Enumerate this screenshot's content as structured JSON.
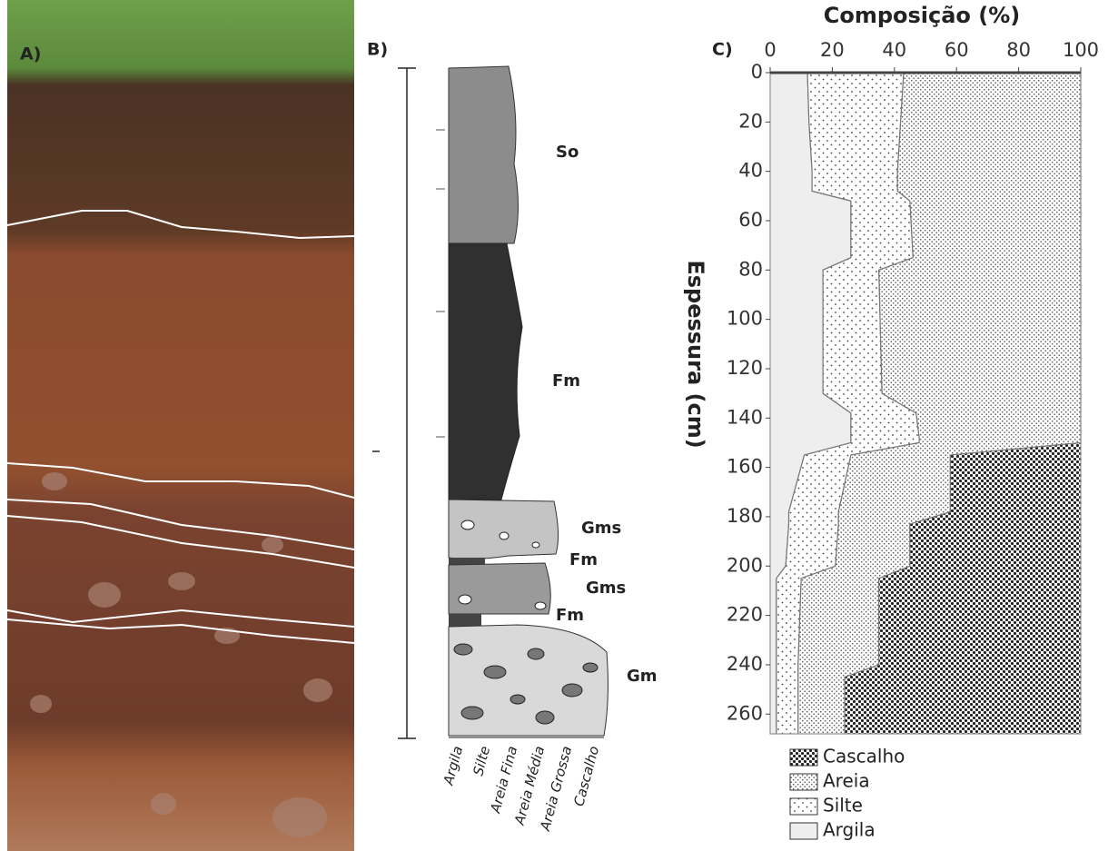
{
  "panel_a": {
    "label": "A)"
  },
  "panel_b": {
    "label": "B)",
    "units": [
      "So",
      "Fm",
      "Gms",
      "Fm",
      "Gms",
      "Fm",
      "Gm"
    ],
    "grain_sizes": [
      "Argila",
      "Silte",
      "Areia Fina",
      "Areia Média",
      "Areia Grossa",
      "Cascalho"
    ]
  },
  "chart_data": {
    "type": "area",
    "stacked": true,
    "orientation": "horizontal",
    "title": "Composição (%)",
    "panel_label": "C)",
    "y_label": "Espessura (cm)",
    "x": [
      0,
      20,
      40,
      48,
      52,
      75,
      80,
      130,
      138,
      148,
      150,
      155,
      178,
      183,
      200,
      205,
      240,
      245,
      268
    ],
    "xlim": [
      0,
      268
    ],
    "xticks": [
      0,
      20,
      40,
      60,
      80,
      100,
      120,
      140,
      160,
      180,
      200,
      220,
      240,
      260
    ],
    "ylim": [
      0,
      100
    ],
    "yticks": [
      0,
      20,
      40,
      60,
      80,
      100
    ],
    "series": [
      {
        "name": "Cascalho",
        "color": "#222222",
        "values": [
          0,
          0,
          0,
          0,
          0,
          0,
          0,
          0,
          0,
          0,
          0,
          42,
          42,
          55,
          55,
          65,
          65,
          76,
          76
        ]
      },
      {
        "name": "Areia",
        "color": "#555555",
        "values": [
          57,
          58,
          59,
          59,
          55,
          54,
          65,
          64,
          53,
          52,
          52,
          32,
          36,
          23,
          24,
          25,
          26,
          15,
          15
        ]
      },
      {
        "name": "Silte",
        "color": "#444444",
        "values": [
          31,
          29.5,
          27.5,
          27.5,
          19,
          20,
          18,
          19,
          21,
          22,
          22,
          15,
          16,
          16,
          16,
          8,
          7,
          7,
          7
        ]
      },
      {
        "name": "Argila",
        "color": "#eeeeee",
        "values": [
          12,
          12.5,
          13.5,
          13.5,
          26,
          26,
          17,
          17,
          26,
          26,
          26,
          11,
          6,
          6,
          5,
          2,
          2,
          2,
          2
        ]
      }
    ]
  }
}
